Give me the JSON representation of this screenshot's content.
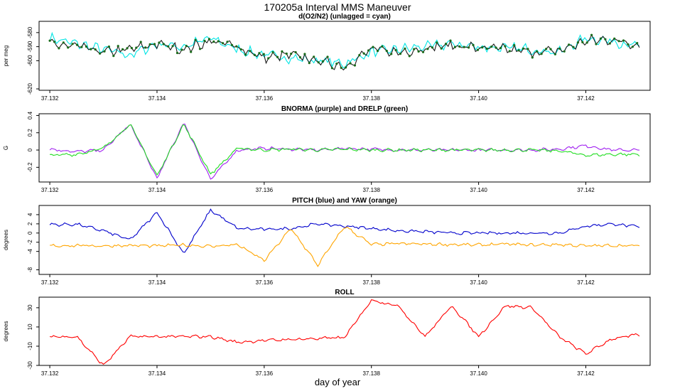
{
  "title": "170205a   Interval MMS Maneuver",
  "xlabel": "day of year",
  "colors": {
    "o2n2": "#1a1a1a",
    "o2n2_pts": "#1a6b1a",
    "cyan": "#00e5e5",
    "purple": "#a020f0",
    "green": "#22dd22",
    "blue": "#0000cc",
    "orange": "#ffa500",
    "red": "#ff0000"
  },
  "chart_data": [
    {
      "type": "line",
      "title": "d(O2/N2) (unlagged = cyan)",
      "ylabel": "per meg",
      "ylim": [
        -621,
        -572
      ],
      "yticks": [
        -620,
        -600,
        -590,
        -580
      ],
      "xlim": [
        37.1318,
        37.1432
      ],
      "xticks": [
        "37.132",
        "37.134",
        "37.136",
        "37.138",
        "37.140",
        "37.142"
      ],
      "grid": false,
      "series": [
        {
          "color": "cyan",
          "x": [
            37.132,
            37.1325,
            37.133,
            37.1335,
            37.134,
            37.1345,
            37.135,
            37.1355,
            37.136,
            37.1365,
            37.137,
            37.1375,
            37.138,
            37.1385,
            37.139,
            37.1395,
            37.14,
            37.1405,
            37.141,
            37.1415,
            37.142,
            37.1425,
            37.143
          ],
          "y": [
            -584,
            -588,
            -592,
            -596,
            -588,
            -590,
            -584,
            -592,
            -596,
            -598,
            -600,
            -602,
            -594,
            -592,
            -590,
            -588,
            -590,
            -591,
            -592,
            -594,
            -584,
            -586,
            -590
          ]
        },
        {
          "color": "o2n2",
          "x": [
            37.132,
            37.1325,
            37.133,
            37.1335,
            37.134,
            37.1345,
            37.135,
            37.1355,
            37.136,
            37.1365,
            37.137,
            37.1375,
            37.138,
            37.1385,
            37.139,
            37.1395,
            37.14,
            37.1405,
            37.141,
            37.1415,
            37.142,
            37.1425,
            37.143
          ],
          "y": [
            -588,
            -590,
            -594,
            -592,
            -588,
            -592,
            -586,
            -590,
            -598,
            -596,
            -600,
            -604,
            -592,
            -594,
            -591,
            -589,
            -591,
            -592,
            -594,
            -593,
            -586,
            -585,
            -589
          ]
        }
      ]
    },
    {
      "type": "line",
      "title": "BNORMA (purple) and DRELP (green)",
      "ylabel": "G",
      "ylim": [
        -0.37,
        0.42
      ],
      "yticks": [
        -0.2,
        0.0,
        0.2,
        0.4
      ],
      "xlim": [
        37.1318,
        37.1432
      ],
      "xticks": [
        "37.132",
        "37.134",
        "37.136",
        "37.138",
        "37.140",
        "37.142"
      ],
      "grid": false,
      "series": [
        {
          "color": "purple",
          "x": [
            37.132,
            37.1325,
            37.133,
            37.1335,
            37.134,
            37.1345,
            37.135,
            37.1355,
            37.136,
            37.1365,
            37.137,
            37.1375,
            37.138,
            37.1385,
            37.139,
            37.1395,
            37.14,
            37.1405,
            37.141,
            37.1415,
            37.142,
            37.1425,
            37.143
          ],
          "y": [
            0.01,
            -0.02,
            0.0,
            0.3,
            -0.33,
            0.32,
            -0.34,
            0.0,
            0.02,
            0.01,
            0.0,
            0.02,
            0.01,
            0.0,
            0.0,
            0.0,
            0.0,
            0.0,
            0.0,
            0.01,
            0.05,
            0.0,
            0.0
          ]
        },
        {
          "color": "green",
          "x": [
            37.132,
            37.1325,
            37.133,
            37.1335,
            37.134,
            37.1345,
            37.135,
            37.1355,
            37.136,
            37.1365,
            37.137,
            37.1375,
            37.138,
            37.1385,
            37.139,
            37.1395,
            37.14,
            37.1405,
            37.141,
            37.1415,
            37.142,
            37.1425,
            37.143
          ],
          "y": [
            -0.06,
            -0.05,
            0.02,
            0.3,
            -0.3,
            0.3,
            -0.28,
            0.02,
            0.0,
            0.01,
            0.0,
            0.01,
            0.0,
            0.0,
            0.0,
            0.0,
            0.0,
            0.0,
            0.0,
            -0.01,
            -0.06,
            -0.05,
            -0.05
          ]
        }
      ]
    },
    {
      "type": "line",
      "title": "PITCH (blue) and YAW (orange)",
      "ylabel": "degrees",
      "ylim": [
        -9,
        6
      ],
      "yticks": [
        -8,
        -4,
        -2,
        0,
        2,
        4
      ],
      "xlim": [
        37.1318,
        37.1432
      ],
      "xticks": [
        "37.132",
        "37.134",
        "37.136",
        "37.138",
        "37.140",
        "37.142"
      ],
      "grid": false,
      "series": [
        {
          "color": "blue",
          "x": [
            37.132,
            37.1325,
            37.133,
            37.1335,
            37.134,
            37.1345,
            37.135,
            37.1355,
            37.136,
            37.1365,
            37.137,
            37.1375,
            37.138,
            37.1385,
            37.139,
            37.1395,
            37.14,
            37.1405,
            37.141,
            37.1415,
            37.142,
            37.1425,
            37.143
          ],
          "y": [
            1.8,
            1.9,
            0.5,
            -1.5,
            4.5,
            -4.5,
            5.0,
            1.0,
            0.8,
            1.0,
            2.0,
            1.5,
            1.0,
            0.5,
            0.3,
            0.0,
            0.0,
            0.0,
            0.0,
            0.0,
            1.5,
            2.0,
            1.3
          ]
        },
        {
          "color": "orange",
          "x": [
            37.132,
            37.1325,
            37.133,
            37.1335,
            37.134,
            37.1345,
            37.135,
            37.1355,
            37.136,
            37.1365,
            37.137,
            37.1375,
            37.138,
            37.1385,
            37.139,
            37.1395,
            37.14,
            37.1405,
            37.141,
            37.1415,
            37.142,
            37.1425,
            37.143
          ],
          "y": [
            -2.8,
            -2.7,
            -2.8,
            -2.7,
            -2.8,
            -2.6,
            -2.9,
            -2.5,
            -6.0,
            1.0,
            -7.0,
            1.5,
            -2.5,
            -2.3,
            -2.4,
            -2.5,
            -2.6,
            -2.4,
            -2.6,
            -2.5,
            -2.8,
            -2.7,
            -2.8
          ]
        }
      ]
    },
    {
      "type": "line",
      "title": "ROLL",
      "ylabel": "degrees",
      "ylim": [
        -30,
        41
      ],
      "yticks": [
        -30,
        -10,
        10,
        30
      ],
      "xlim": [
        37.1318,
        37.1432
      ],
      "xticks": [
        "37.132",
        "37.134",
        "37.136",
        "37.138",
        "37.140",
        "37.142"
      ],
      "grid": false,
      "series": [
        {
          "color": "red",
          "x": [
            37.132,
            37.1325,
            37.133,
            37.1335,
            37.134,
            37.1345,
            37.135,
            37.1355,
            37.136,
            37.1365,
            37.137,
            37.1375,
            37.138,
            37.1385,
            37.139,
            37.1395,
            37.14,
            37.1405,
            37.141,
            37.1415,
            37.142,
            37.1425,
            37.143
          ],
          "y": [
            0,
            0,
            -30,
            0,
            0,
            0,
            0,
            -6,
            -4,
            -3,
            -2,
            -1,
            38,
            32,
            0,
            32,
            0,
            32,
            30,
            0,
            -18,
            -2,
            2
          ]
        }
      ]
    }
  ]
}
